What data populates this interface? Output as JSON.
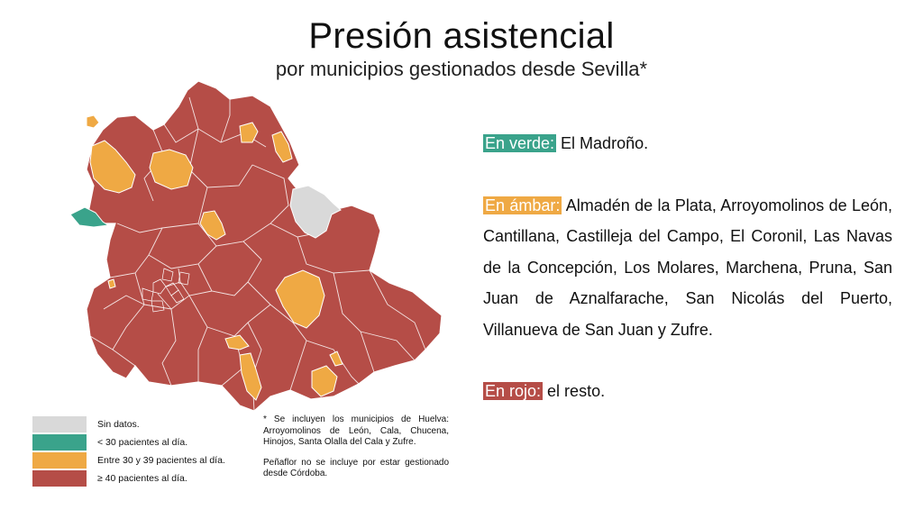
{
  "title": "Presión asistencial",
  "subtitle": "por municipios gestionados desde Sevilla*",
  "colors": {
    "no_data": "#d9d9d9",
    "green": "#3aa38b",
    "amber": "#efa944",
    "red": "#b54d47",
    "border": "#ffffff"
  },
  "legend": [
    {
      "label": "Sin datos.",
      "color": "#d9d9d9"
    },
    {
      "label": "< 30 pacientes al día.",
      "color": "#3aa38b"
    },
    {
      "label": "Entre 30 y 39 pacientes al día.",
      "color": "#efa944"
    },
    {
      "label": "≥ 40 pacientes al día.",
      "color": "#b54d47"
    }
  ],
  "footnote": {
    "p1": "* Se incluyen los municipios de Huelva: Arroyomolinos de León, Cala, Chucena, Hinojos, Santa Olalla del Cala y Zufre.",
    "p2": "Peñaflor no se incluye por estar gestionado desde Córdoba."
  },
  "info": {
    "green": {
      "tag": "En verde:",
      "text": " El Madroño."
    },
    "amber": {
      "tag": "En ámbar:",
      "text": " Almadén de la Plata, Arroyomolinos de León, Cantillana, Castilleja del Campo, El Coronil, Las Navas de la Concepción, Los Molares, Marchena, Pruna, San Juan de Aznalfarache, San Nicolás del Puerto, Villanueva de San Juan y Zufre."
    },
    "red": {
      "tag": "En rojo:",
      "text": " el resto."
    }
  }
}
